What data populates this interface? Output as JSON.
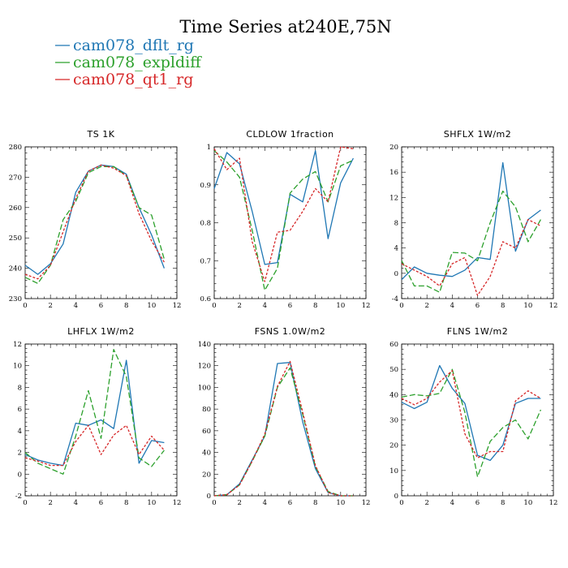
{
  "chart_data": {
    "type": "line",
    "title": "Time Series at240E,75N",
    "legend": [
      {
        "name": "cam078_dflt_rg",
        "color": "#1f77b4",
        "dash": "solid"
      },
      {
        "name": "cam078_expldiff",
        "color": "#2ca02c",
        "dash": "dashed"
      },
      {
        "name": "cam078_qt1_rg",
        "color": "#d62728",
        "dash": "dotted"
      }
    ],
    "x": [
      0,
      1,
      2,
      3,
      4,
      5,
      6,
      7,
      8,
      9,
      10,
      11
    ],
    "panels": [
      {
        "title": "TS   1K",
        "xlim": [
          0,
          12
        ],
        "ylim": [
          230,
          280
        ],
        "xticks": [
          0,
          2,
          4,
          6,
          8,
          10,
          12
        ],
        "yticks": [
          230,
          240,
          250,
          260,
          270,
          280
        ],
        "series": [
          {
            "name": "cam078_dflt_rg",
            "values": [
              241,
              238,
              241.5,
              248,
              265,
              272,
              274,
              273.5,
              271,
              260,
              251,
              240
            ]
          },
          {
            "name": "cam078_expldiff",
            "values": [
              237,
              235,
              241,
              256,
              262,
              271.5,
              273.5,
              273.5,
              270.5,
              260,
              257.5,
              243
            ]
          },
          {
            "name": "cam078_qt1_rg",
            "values": [
              238,
              236.5,
              241,
              252,
              263,
              272,
              274,
              273,
              270.5,
              258,
              249,
              242
            ]
          }
        ]
      },
      {
        "title": "CLDLOW   1fraction",
        "xlim": [
          0,
          12
        ],
        "ylim": [
          0.6,
          1.0
        ],
        "xticks": [
          0,
          2,
          4,
          6,
          8,
          10,
          12
        ],
        "yticks": [
          0.6,
          0.7,
          0.8,
          0.9,
          1.0
        ],
        "series": [
          {
            "name": "cam078_dflt_rg",
            "values": [
              0.89,
              0.985,
              0.955,
              0.83,
              0.69,
              0.695,
              0.875,
              0.855,
              0.99,
              0.758,
              0.905,
              0.97
            ]
          },
          {
            "name": "cam078_expldiff",
            "values": [
              0.99,
              0.96,
              0.92,
              0.78,
              0.622,
              0.68,
              0.878,
              0.915,
              0.935,
              0.855,
              0.95,
              0.965
            ]
          },
          {
            "name": "cam078_qt1_rg",
            "values": [
              0.995,
              0.94,
              0.97,
              0.75,
              0.645,
              0.775,
              0.78,
              0.83,
              0.89,
              0.855,
              1.0,
              0.995
            ]
          }
        ]
      },
      {
        "title": "SHFLX   1W/m2",
        "xlim": [
          0,
          12
        ],
        "ylim": [
          -4,
          20
        ],
        "xticks": [
          0,
          2,
          4,
          6,
          8,
          10,
          12
        ],
        "yticks": [
          -4,
          0,
          4,
          8,
          12,
          16,
          20
        ],
        "series": [
          {
            "name": "cam078_dflt_rg",
            "values": [
              -1,
              1,
              0,
              -0.3,
              -0.5,
              0.5,
              2.5,
              2.2,
              17.5,
              3.5,
              8.5,
              10
            ]
          },
          {
            "name": "cam078_expldiff",
            "values": [
              2,
              -2,
              -2,
              -3,
              3.3,
              3.2,
              2,
              8,
              13,
              10.5,
              5,
              8.5
            ]
          },
          {
            "name": "cam078_qt1_rg",
            "values": [
              1.5,
              0.5,
              -0.5,
              -2,
              1.5,
              2.5,
              -3.5,
              -0.5,
              5,
              4,
              8.5,
              7.5
            ]
          }
        ]
      },
      {
        "title": "LHFLX   1W/m2",
        "xlim": [
          0,
          12
        ],
        "ylim": [
          -2,
          12
        ],
        "xticks": [
          0,
          2,
          4,
          6,
          8,
          10,
          12
        ],
        "yticks": [
          -2,
          0,
          2,
          4,
          6,
          8,
          10,
          12
        ],
        "series": [
          {
            "name": "cam078_dflt_rg",
            "values": [
              1.8,
              1.3,
              1,
              0.8,
              4.7,
              4.5,
              5,
              4.2,
              10.5,
              1,
              3.1,
              2.9
            ]
          },
          {
            "name": "cam078_expldiff",
            "values": [
              2,
              1,
              0.5,
              0,
              3.5,
              7.7,
              3.3,
              11.5,
              9,
              1.5,
              0.7,
              2.2
            ]
          },
          {
            "name": "cam078_qt1_rg",
            "values": [
              1.5,
              1.2,
              0.8,
              0.8,
              3,
              4.5,
              1.8,
              3.6,
              4.5,
              1.8,
              3.5,
              2.2
            ]
          }
        ]
      },
      {
        "title": "FSNS   1.0W/m2",
        "xlim": [
          0,
          12
        ],
        "ylim": [
          0,
          140
        ],
        "xticks": [
          0,
          2,
          4,
          6,
          8,
          10,
          12
        ],
        "yticks": [
          0,
          20,
          40,
          60,
          80,
          100,
          120,
          140
        ],
        "series": [
          {
            "name": "cam078_dflt_rg",
            "values": [
              0,
              1,
              11,
              33,
              55,
              122,
              123,
              68,
              25,
              3,
              0,
              0
            ]
          },
          {
            "name": "cam078_expldiff",
            "values": [
              0,
              1,
              10,
              32,
              55,
              100,
              118,
              75,
              27,
              4,
              0,
              0
            ]
          },
          {
            "name": "cam078_qt1_rg",
            "values": [
              0,
              1,
              10,
              32,
              57,
              101,
              124,
              77,
              28,
              3,
              0,
              0
            ]
          }
        ]
      },
      {
        "title": "FLNS   1W/m2",
        "xlim": [
          0,
          12
        ],
        "ylim": [
          0,
          60
        ],
        "xticks": [
          0,
          2,
          4,
          6,
          8,
          10,
          12
        ],
        "yticks": [
          0,
          10,
          20,
          30,
          40,
          50,
          60
        ],
        "series": [
          {
            "name": "cam078_dflt_rg",
            "values": [
              37,
              34.5,
              37,
              51.5,
              42.5,
              36.5,
              16,
              14,
              20,
              36.5,
              38.5,
              38.5
            ]
          },
          {
            "name": "cam078_expldiff",
            "values": [
              39,
              40,
              39.5,
              40.5,
              50,
              33,
              7.5,
              21.5,
              27,
              30,
              22.5,
              34
            ]
          },
          {
            "name": "cam078_qt1_rg",
            "values": [
              38.5,
              36,
              38.5,
              45,
              49.5,
              24.5,
              15,
              17.5,
              17.5,
              37.5,
              41.5,
              38.5
            ]
          }
        ]
      }
    ]
  }
}
